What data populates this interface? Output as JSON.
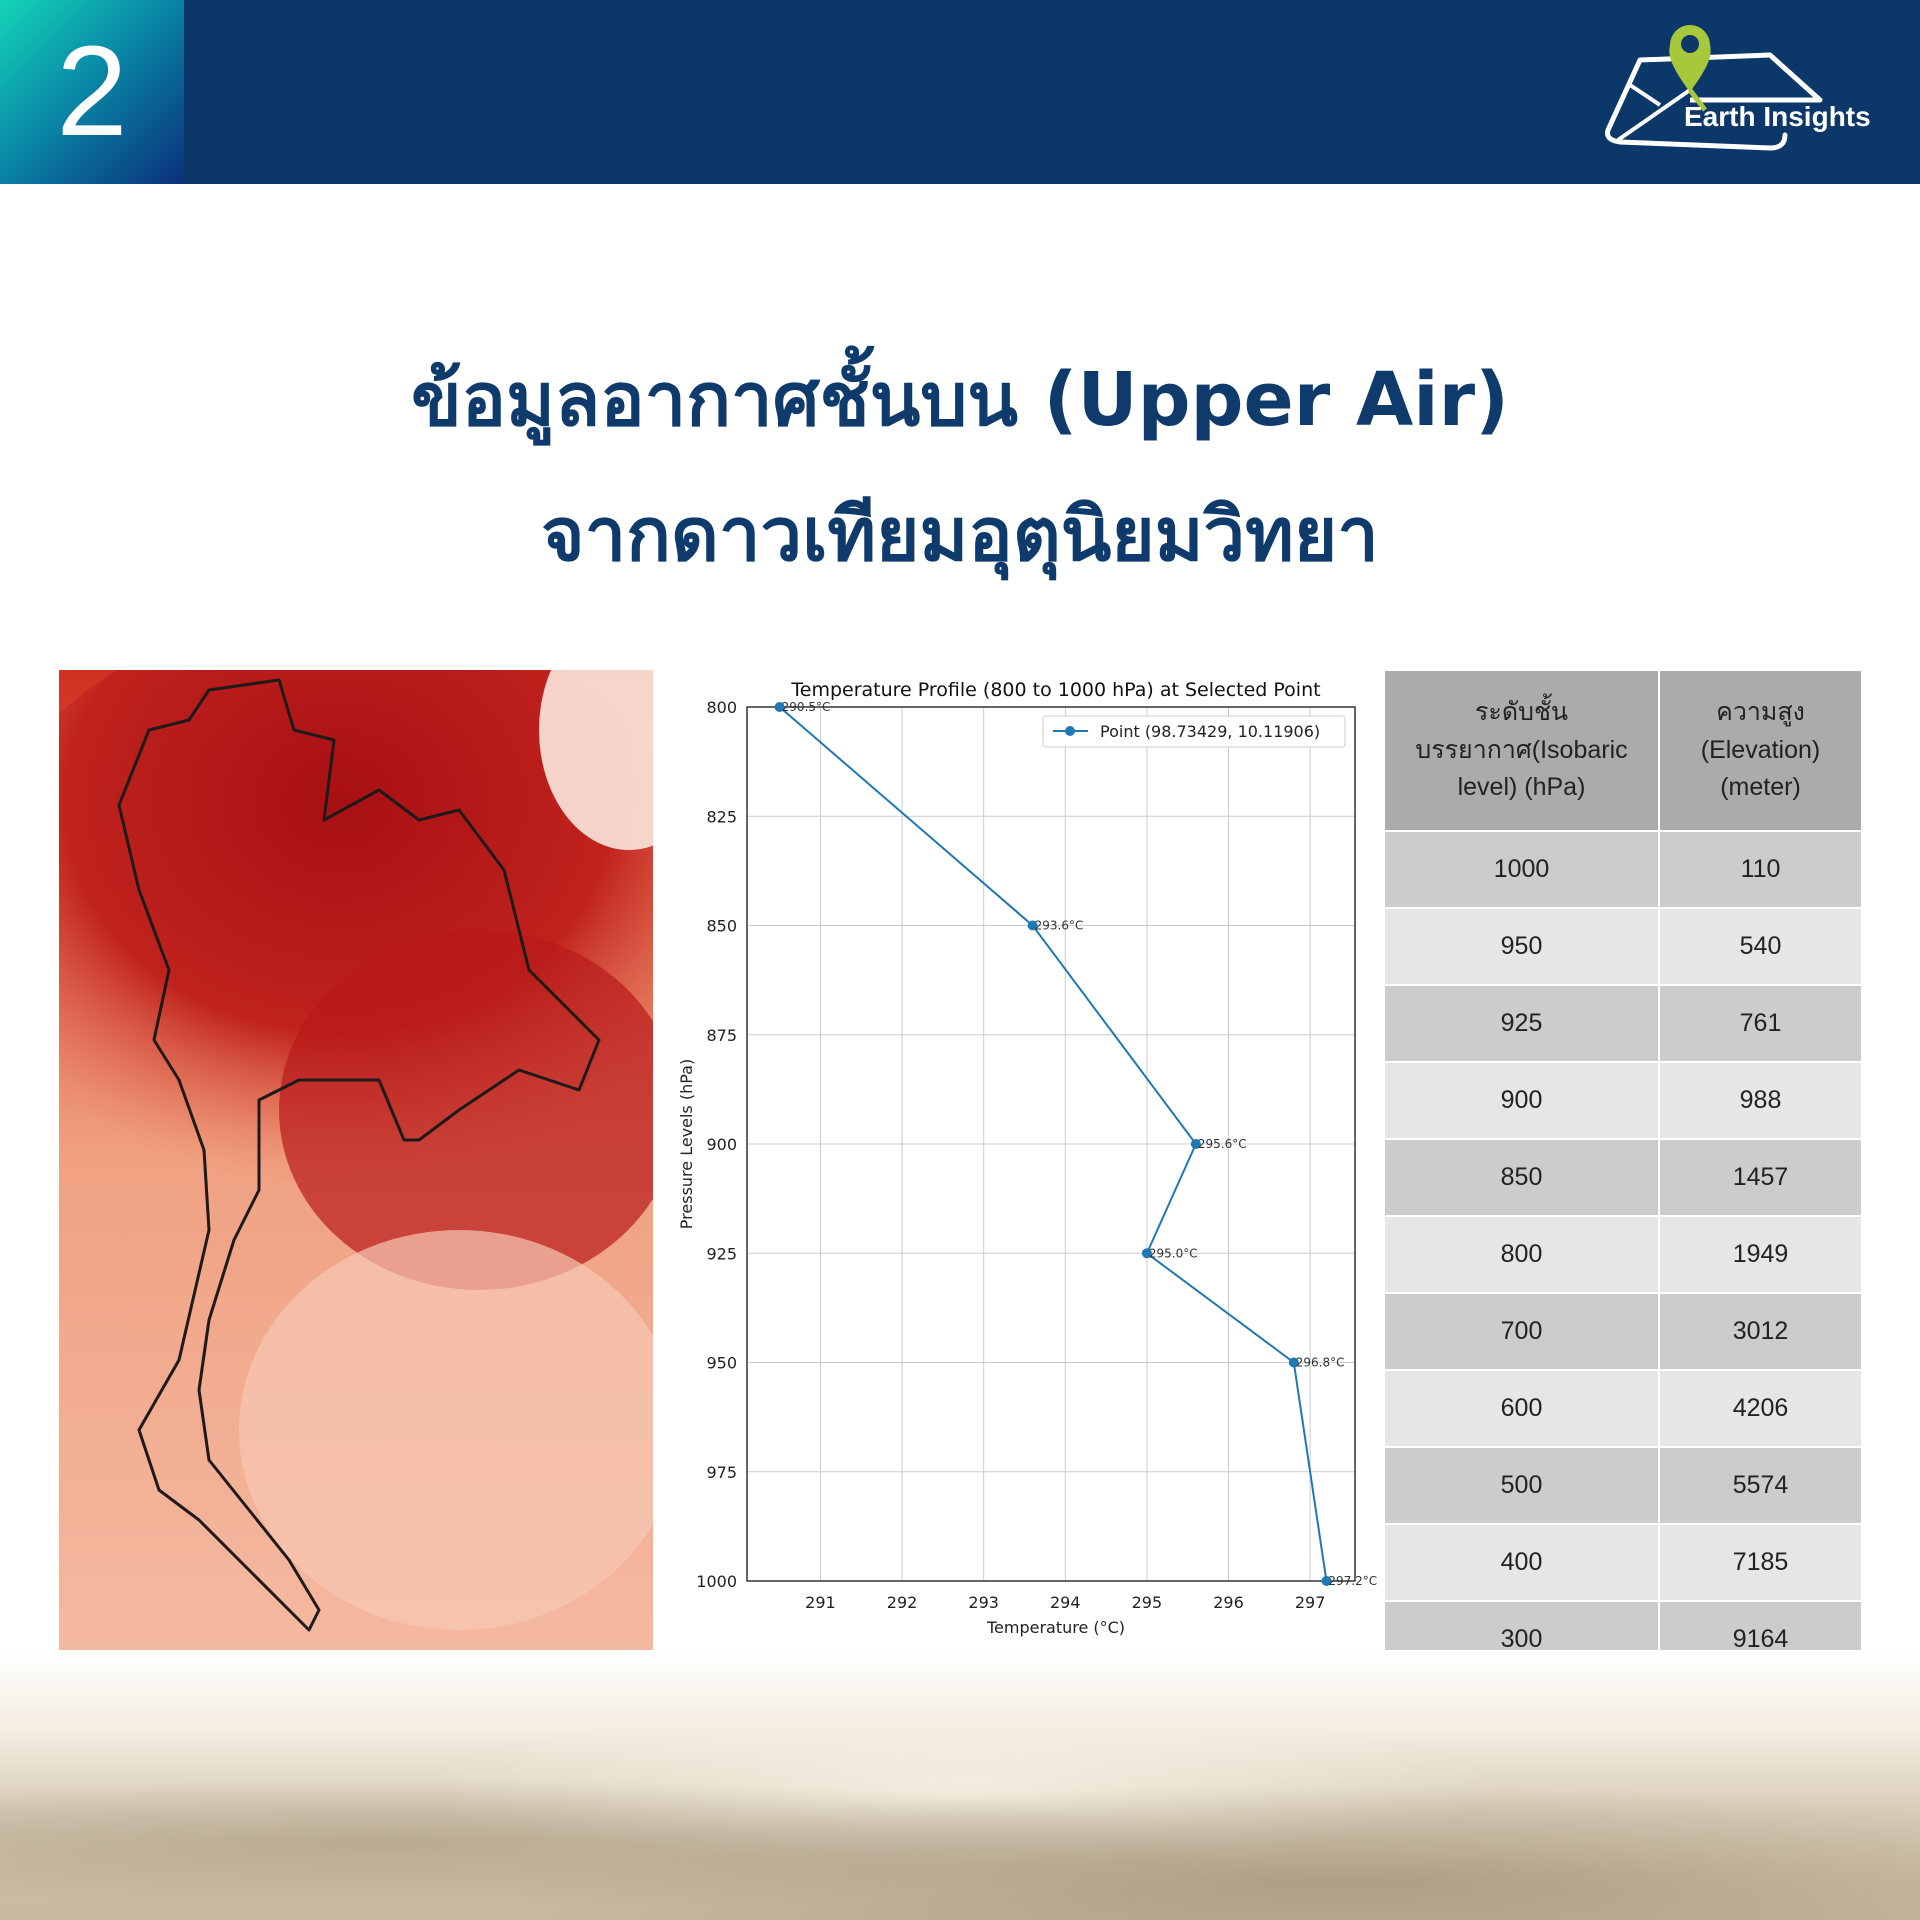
{
  "header": {
    "slide_number": "2",
    "logo_text": "Earth Insights",
    "brand_color": "#0b3769",
    "logo_pin_color": "#a6c83a"
  },
  "title": {
    "line1": "ข้อมูลอากาศชั้นบน (Upper Air)",
    "line2": "จากดาวเทียมอุตุนิยมวิทยา",
    "color": "#0e3b6c"
  },
  "map": {
    "description_icon": "thailand-temperature-map"
  },
  "chart_data": {
    "type": "line",
    "title": "Temperature Profile (800 to 1000 hPa) at Selected Point",
    "xlabel": "Temperature (°C)",
    "ylabel": "Pressure Levels (hPa)",
    "xlim": [
      290.1,
      297.55
    ],
    "ylim": [
      1000,
      800
    ],
    "y_inverted": true,
    "grid": true,
    "legend_placement": "top-right",
    "xticks": [
      "291",
      "292",
      "293",
      "294",
      "295",
      "296",
      "297"
    ],
    "yticks": [
      "800",
      "825",
      "850",
      "875",
      "900",
      "925",
      "950",
      "975",
      "1000"
    ],
    "series": [
      {
        "name": "Point (98.73429, 10.11906)",
        "color": "#1f77b4",
        "points": [
          {
            "x": 290.5,
            "y": 800,
            "label": "290.5°C"
          },
          {
            "x": 293.6,
            "y": 850,
            "label": "293.6°C"
          },
          {
            "x": 295.6,
            "y": 900,
            "label": "295.6°C"
          },
          {
            "x": 295.0,
            "y": 925,
            "label": "295.0°C"
          },
          {
            "x": 296.8,
            "y": 950,
            "label": "296.8°C"
          },
          {
            "x": 297.2,
            "y": 1000,
            "label": "297.2°C"
          }
        ]
      }
    ]
  },
  "table": {
    "headers": [
      "ระดับชั้นบรรยากาศ(Isobaric level) (hPa)",
      "ความสูง (Elevation) (meter)"
    ],
    "rows": [
      [
        "1000",
        "110"
      ],
      [
        "950",
        "540"
      ],
      [
        "925",
        "761"
      ],
      [
        "900",
        "988"
      ],
      [
        "850",
        "1457"
      ],
      [
        "800",
        "1949"
      ],
      [
        "700",
        "3012"
      ],
      [
        "600",
        "4206"
      ],
      [
        "500",
        "5574"
      ],
      [
        "400",
        "7185"
      ],
      [
        "300",
        "9164"
      ]
    ]
  }
}
